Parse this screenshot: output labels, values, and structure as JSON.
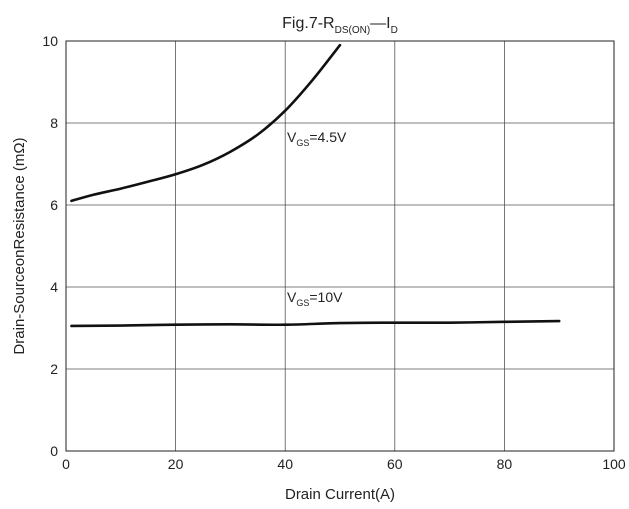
{
  "chart_data": {
    "type": "line",
    "title": {
      "prefix": "Fig.7-R",
      "sub1": "DS(ON)",
      "mid": "—I",
      "sub2": "D"
    },
    "xlabel": "Drain Current(A)",
    "ylabel": "Drain-SourceonResistance (mΩ)",
    "xlim": [
      0,
      100
    ],
    "ylim": [
      0,
      10
    ],
    "xticks": [
      0,
      20,
      40,
      60,
      80,
      100
    ],
    "yticks": [
      0,
      2,
      4,
      6,
      8,
      10
    ],
    "grid": true,
    "series": [
      {
        "name": "VGS=4.5V",
        "label": {
          "main": "V",
          "sub": "GS",
          "rest": "=4.5V"
        },
        "x": [
          1,
          5,
          10,
          15,
          20,
          25,
          30,
          35,
          40,
          45,
          50
        ],
        "y": [
          6.1,
          6.25,
          6.4,
          6.57,
          6.75,
          6.98,
          7.3,
          7.72,
          8.3,
          9.05,
          9.9
        ]
      },
      {
        "name": "VGS=10V",
        "label": {
          "main": "V",
          "sub": "GS",
          "rest": "=10V"
        },
        "x": [
          1,
          10,
          20,
          30,
          40,
          50,
          60,
          70,
          80,
          90
        ],
        "y": [
          3.05,
          3.06,
          3.08,
          3.09,
          3.08,
          3.12,
          3.13,
          3.13,
          3.15,
          3.17
        ]
      }
    ]
  }
}
